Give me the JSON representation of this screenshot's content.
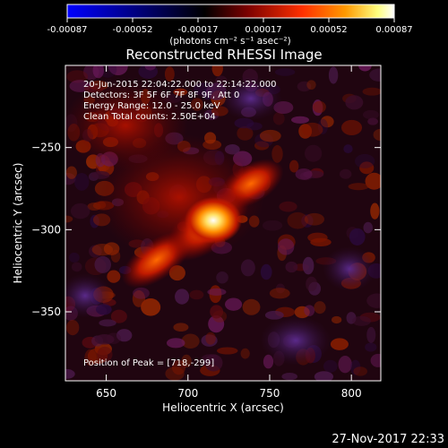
{
  "colorbar": {
    "tick_values": [
      "-0.00087",
      "-0.00052",
      "-0.00017",
      "0.00017",
      "0.00052",
      "0.00087"
    ],
    "unit_label": "(photons cm⁻² s⁻¹ asec⁻²)",
    "range": [
      -0.00087,
      0.00087
    ],
    "colors": [
      "#0000ff",
      "#000000",
      "#7a0000",
      "#ff3000",
      "#ff9900",
      "#ffff80",
      "#ffffff"
    ]
  },
  "image": {
    "title": "Reconstructed RHESSI Image",
    "info_lines": [
      "20-Jun-2015 22:04:22.000 to 22:14:22.000",
      "Detectors: 3F 5F 6F 7F 8F 9F, Att 0",
      "Energy Range: 12.0 - 25.0 keV",
      "Clean     Total counts: 2.50E+04"
    ],
    "peak_label": "Position of Peak = [718,-299]",
    "peak": [
      718,
      -299
    ],
    "x_axis": {
      "label": "Heliocentric X (arcsec)",
      "ticks": [
        650,
        700,
        750,
        800
      ],
      "tick_labels": [
        "650",
        "700",
        "750",
        "800"
      ],
      "range": [
        625,
        818
      ]
    },
    "y_axis": {
      "label": "Heliocentric Y (arcsec)",
      "ticks": [
        -250,
        -300,
        -350
      ],
      "tick_labels": [
        "−250",
        "−300",
        "−350"
      ],
      "range": [
        -392,
        -200
      ]
    }
  },
  "footer": {
    "timestamp": "27-Nov-2017 22:33"
  }
}
